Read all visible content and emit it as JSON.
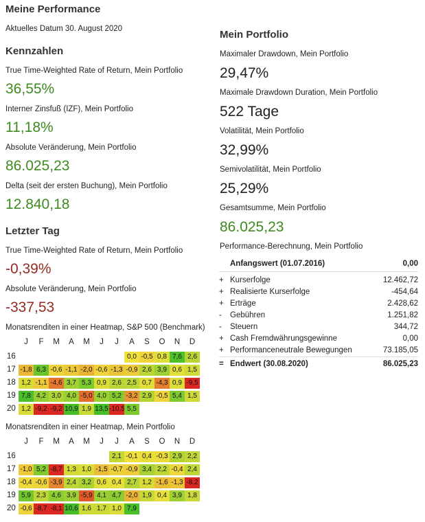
{
  "page_title": "Meine Performance",
  "current_date": "Aktuelles Datum 30. August 2020",
  "kennzahlen": {
    "heading": "Kennzahlen",
    "items": [
      {
        "label": "True Time-Weighted Rate of Return, Mein Portfolio",
        "value": "36,55%"
      },
      {
        "label": "Interner Zinsfuß (IZF), Mein Portfolio",
        "value": "11,18%"
      },
      {
        "label": "Absolute Veränderung, Mein Portfolio",
        "value": "86.025,23"
      },
      {
        "label": "Delta (seit der ersten Buchung), Mein Portfolio",
        "value": "12.840,18"
      }
    ]
  },
  "letzter_tag": {
    "heading": "Letzter Tag",
    "items": [
      {
        "label": "True Time-Weighted Rate of Return, Mein Portfolio",
        "value": "-0,39%"
      },
      {
        "label": "Absolute Veränderung, Mein Portfolio",
        "value": "-337,53"
      }
    ]
  },
  "portfolio": {
    "heading": "Mein Portfolio",
    "items": [
      {
        "label": "Maximaler Drawdown, Mein Portfolio",
        "value": "29,47%"
      },
      {
        "label": "Maximale Drawdown Duration, Mein Portfolio",
        "value": "522 Tage"
      },
      {
        "label": "Volatilität, Mein Portfolio",
        "value": "32,99%"
      },
      {
        "label": "Semivolatilität, Mein Portfolio",
        "value": "25,29%"
      },
      {
        "label": "Gesamtsumme, Mein Portfolio",
        "value": "86.025,23"
      }
    ],
    "calc_label": "Performance-Berechnung, Mein Portfolio",
    "calc": {
      "head": {
        "name": "Anfangswert (01.07.2016)",
        "value": "0,00"
      },
      "rows": [
        {
          "sign": "+",
          "name": "Kurserfolge",
          "value": "12.462,72"
        },
        {
          "sign": "+",
          "name": "Realisierte Kurserfolge",
          "value": "-454,64"
        },
        {
          "sign": "+",
          "name": "Erträge",
          "value": "2.428,62"
        },
        {
          "sign": "-",
          "name": "Gebühren",
          "value": "1.251,82"
        },
        {
          "sign": "-",
          "name": "Steuern",
          "value": "344,72"
        },
        {
          "sign": "+",
          "name": "Cash Fremdwährungsgewinne",
          "value": "0,00"
        },
        {
          "sign": "+",
          "name": "Performanceneutrale Bewegungen",
          "value": "73.185,05"
        }
      ],
      "foot": {
        "sign": "=",
        "name": "Endwert (30.08.2020)",
        "value": "86.025,23"
      }
    }
  },
  "heatmaps": [
    {
      "title": "Monatsrenditen in einer Heatmap, S&P 500 (Benchmark)",
      "months": [
        "J",
        "F",
        "M",
        "A",
        "M",
        "J",
        "J",
        "A",
        "S",
        "O",
        "N",
        "D"
      ],
      "years": [
        "16",
        "17",
        "18",
        "19",
        "20"
      ],
      "rows": [
        [
          "",
          "",
          "",
          "",
          "",
          "",
          "",
          "0,0",
          "-0,5",
          "0,8",
          "7,6",
          "2,6"
        ],
        [
          "-1,8",
          "6,3",
          "-0,6",
          "-1,1",
          "-2,0",
          "-0,6",
          "-1,3",
          "-0,9",
          "2,6",
          "3,9",
          "0,6",
          "1,5"
        ],
        [
          "1,2",
          "-1,1",
          "-4,6",
          "3,7",
          "5,3",
          "0,9",
          "2,6",
          "2,5",
          "0,7",
          "-4,3",
          "0,9",
          "-9,5"
        ],
        [
          "7,8",
          "4,2",
          "3,0",
          "4,0",
          "-5,0",
          "4,0",
          "5,2",
          "-3,2",
          "2,9",
          "-0,5",
          "5,4",
          "1,5"
        ],
        [
          "1,2",
          "-9,2",
          "-9,2",
          "10,9",
          "1,9",
          "13,5",
          "-10,5",
          "5,5",
          "",
          "",
          "",
          ""
        ]
      ]
    },
    {
      "title": "Monatsrenditen in einer Heatmap, Mein Portfolio",
      "months": [
        "J",
        "F",
        "M",
        "A",
        "M",
        "J",
        "J",
        "A",
        "S",
        "O",
        "N",
        "D"
      ],
      "years": [
        "16",
        "17",
        "18",
        "19",
        "20"
      ],
      "rows": [
        [
          "",
          "",
          "",
          "",
          "",
          "",
          "2,1",
          "-0,1",
          "0,4",
          "-0,3",
          "2,9",
          "2,2"
        ],
        [
          "-1,0",
          "5,2",
          "-8,7",
          "1,3",
          "1,0",
          "-1,5",
          "-0,7",
          "-0,9",
          "3,4",
          "2,2",
          "-0,4",
          "2,4"
        ],
        [
          "-0,4",
          "-0,6",
          "-3,9",
          "2,4",
          "3,2",
          "0,6",
          "0,4",
          "2,7",
          "1,2",
          "-1,6",
          "-1,3",
          "-8,2"
        ],
        [
          "5,9",
          "2,3",
          "4,6",
          "3,9",
          "-5,9",
          "4,1",
          "4,7",
          "-2,0",
          "1,9",
          "0,4",
          "3,9",
          "1,8"
        ],
        [
          "-0,6",
          "-8,7",
          "-8,1",
          "10,6",
          "1,6",
          "1,7",
          "1,0",
          "7,9",
          "",
          "",
          "",
          ""
        ]
      ]
    }
  ],
  "colors": {
    "positive": "#3f8a20",
    "negative": "#952b20"
  }
}
